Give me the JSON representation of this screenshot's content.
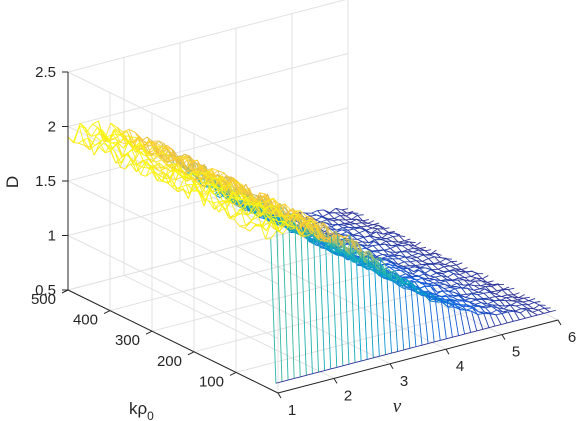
{
  "chart_data": {
    "type": "surface",
    "title": "",
    "xlabel": "ν",
    "ylabel_main": "kρ",
    "ylabel_sub": "0",
    "zlabel": "D",
    "xlim": [
      1,
      6
    ],
    "ylim": [
      0,
      500
    ],
    "zlim": [
      0.5,
      2.5
    ],
    "x_ticks": [
      1,
      2,
      3,
      4,
      5,
      6
    ],
    "y_ticks": [
      100,
      200,
      300,
      400,
      500
    ],
    "z_ticks": [
      0.5,
      1,
      1.5,
      2,
      2.5
    ],
    "x_tick_labels": [
      "1",
      "2",
      "3",
      "4",
      "5",
      "6"
    ],
    "y_tick_labels": [
      "100",
      "200",
      "300",
      "400",
      "500"
    ],
    "z_tick_labels": [
      "0.5",
      "1",
      "1.5",
      "2",
      "2.5"
    ],
    "grid": true,
    "colormap": "parula",
    "colormap_stops": [
      "#352a87",
      "#0f5cdd",
      "#1481d6",
      "#06a4ca",
      "#2eb7a4",
      "#87bf77",
      "#d1bb59",
      "#fec832",
      "#f9fb0e"
    ],
    "nu_samples": [
      1.0,
      1.5,
      2.0,
      2.5,
      3.0,
      3.5,
      4.0,
      4.5,
      5.0,
      5.5,
      6.0
    ],
    "krho_samples": [
      5,
      50,
      100,
      150,
      200,
      250,
      300,
      350,
      400,
      450,
      500
    ],
    "D_profile_vs_nu": [
      1.93,
      1.9,
      1.8,
      1.62,
      1.38,
      1.12,
      0.9,
      0.75,
      0.66,
      0.61,
      0.58
    ],
    "D_krho_low_end": 0.58,
    "D_noise_amplitude": 0.06
  }
}
